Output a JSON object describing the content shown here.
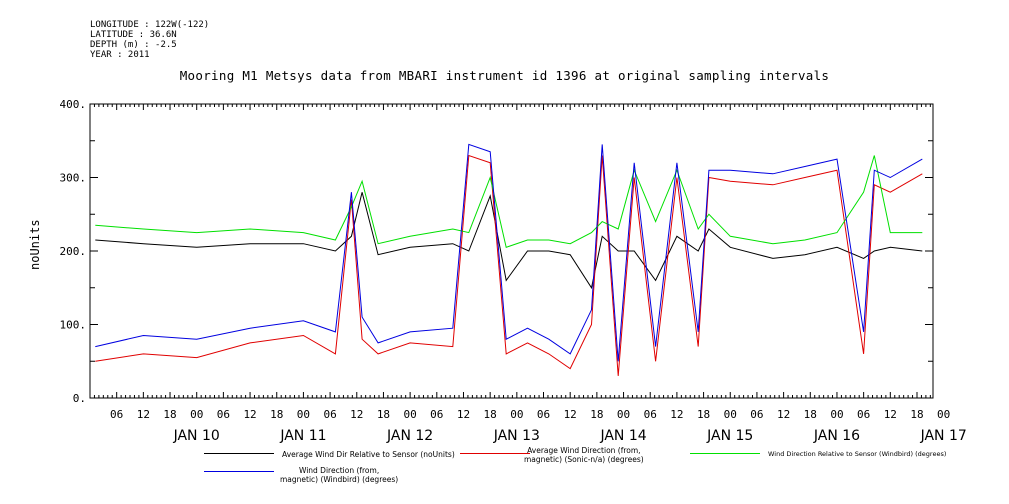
{
  "meta": {
    "longitude": "LONGITUDE : 122W(-122)",
    "latitude": "LATITUDE : 36.6N",
    "depth": "DEPTH (m) : -2.5",
    "year": "YEAR : 2011"
  },
  "chart_data": {
    "type": "line",
    "title": "Mooring M1 Metsys data from MBARI instrument id 1396 at original sampling intervals",
    "ylabel": "noUnits",
    "xlabel": "",
    "ylim": [
      0,
      400
    ],
    "xlim": [
      0.0,
      7.9
    ],
    "x_units": "days since JAN 9 2011 00:00",
    "yticks": [
      "0.",
      "100.",
      "200.",
      "300.",
      "400."
    ],
    "hour_ticks": [
      "06",
      "12",
      "18",
      "00",
      "06",
      "12",
      "18",
      "00",
      "06",
      "12",
      "18",
      "00",
      "06",
      "12",
      "18",
      "00",
      "06",
      "12",
      "18",
      "00",
      "06",
      "12",
      "18",
      "00",
      "06",
      "12",
      "18",
      "00",
      "06",
      "12",
      "18",
      "00"
    ],
    "day_labels": [
      "JAN 10",
      "JAN 11",
      "JAN 12",
      "JAN 13",
      "JAN 14",
      "JAN 15",
      "JAN 16",
      "JAN 17"
    ],
    "grid": false,
    "legend_position": "bottom",
    "series": [
      {
        "name": "Average Wind Dir Relative to Sensor (noUnits)",
        "color": "#000000",
        "x": [
          0.05,
          0.5,
          1.0,
          1.5,
          2.0,
          2.3,
          2.45,
          2.55,
          2.7,
          3.0,
          3.4,
          3.55,
          3.75,
          3.9,
          4.1,
          4.3,
          4.5,
          4.7,
          4.8,
          4.95,
          5.1,
          5.3,
          5.5,
          5.7,
          5.8,
          6.0,
          6.4,
          6.7,
          7.0,
          7.25,
          7.35,
          7.5,
          7.8
        ],
        "y": [
          215,
          210,
          205,
          210,
          210,
          200,
          220,
          280,
          195,
          205,
          210,
          200,
          275,
          160,
          200,
          200,
          195,
          150,
          220,
          200,
          200,
          160,
          220,
          200,
          230,
          205,
          190,
          195,
          205,
          190,
          200,
          205,
          200
        ]
      },
      {
        "name": "Average Wind Direction (from, magnetic) (Sonic-n/a) (degrees)",
        "color": "#e00000",
        "x": [
          0.05,
          0.5,
          1.0,
          1.5,
          2.0,
          2.3,
          2.45,
          2.55,
          2.7,
          3.0,
          3.4,
          3.55,
          3.75,
          3.9,
          4.1,
          4.3,
          4.5,
          4.7,
          4.8,
          4.95,
          5.1,
          5.3,
          5.5,
          5.7,
          5.8,
          6.0,
          6.4,
          6.7,
          7.0,
          7.25,
          7.35,
          7.5,
          7.8
        ],
        "y": [
          50,
          60,
          55,
          75,
          85,
          60,
          270,
          80,
          60,
          75,
          70,
          330,
          320,
          60,
          75,
          60,
          40,
          100,
          330,
          30,
          300,
          50,
          300,
          70,
          300,
          295,
          290,
          300,
          310,
          60,
          290,
          280,
          305
        ]
      },
      {
        "name": "Wind Direction Relative to Sensor (Windbird) (degrees)",
        "color": "#00e000",
        "x": [
          0.05,
          0.5,
          1.0,
          1.5,
          2.0,
          2.3,
          2.45,
          2.55,
          2.7,
          3.0,
          3.4,
          3.55,
          3.75,
          3.9,
          4.1,
          4.3,
          4.5,
          4.7,
          4.8,
          4.95,
          5.1,
          5.3,
          5.5,
          5.7,
          5.8,
          6.0,
          6.4,
          6.7,
          7.0,
          7.25,
          7.35,
          7.5,
          7.8
        ],
        "y": [
          235,
          230,
          225,
          230,
          225,
          215,
          260,
          295,
          210,
          220,
          230,
          225,
          300,
          205,
          215,
          215,
          210,
          225,
          240,
          230,
          310,
          240,
          310,
          230,
          250,
          220,
          210,
          215,
          225,
          280,
          330,
          225,
          225
        ]
      },
      {
        "name": "Wind Direction (from, magnetic) (Windbird) (degrees)",
        "color": "#0000e0",
        "x": [
          0.05,
          0.5,
          1.0,
          1.5,
          2.0,
          2.3,
          2.45,
          2.55,
          2.7,
          3.0,
          3.4,
          3.55,
          3.75,
          3.9,
          4.1,
          4.3,
          4.5,
          4.7,
          4.8,
          4.95,
          5.1,
          5.3,
          5.5,
          5.7,
          5.8,
          6.0,
          6.4,
          6.7,
          7.0,
          7.25,
          7.35,
          7.5,
          7.8
        ],
        "y": [
          70,
          85,
          80,
          95,
          105,
          90,
          280,
          110,
          75,
          90,
          95,
          345,
          335,
          80,
          95,
          80,
          60,
          120,
          345,
          50,
          320,
          70,
          320,
          90,
          310,
          310,
          305,
          315,
          325,
          90,
          310,
          300,
          325
        ]
      }
    ]
  },
  "legend": [
    {
      "line1": "Average Wind Dir Relative to Sensor (noUnits)",
      "line2": ""
    },
    {
      "line1": "Average Wind Direction (from,",
      "line2": "magnetic) (Sonic-n/a) (degrees)"
    },
    {
      "line1": "Wind Direction Relative to Sensor (Windbird) (degrees)",
      "line2": ""
    },
    {
      "line1": "Wind Direction (from,",
      "line2": "magnetic) (Windbird) (degrees)"
    }
  ]
}
